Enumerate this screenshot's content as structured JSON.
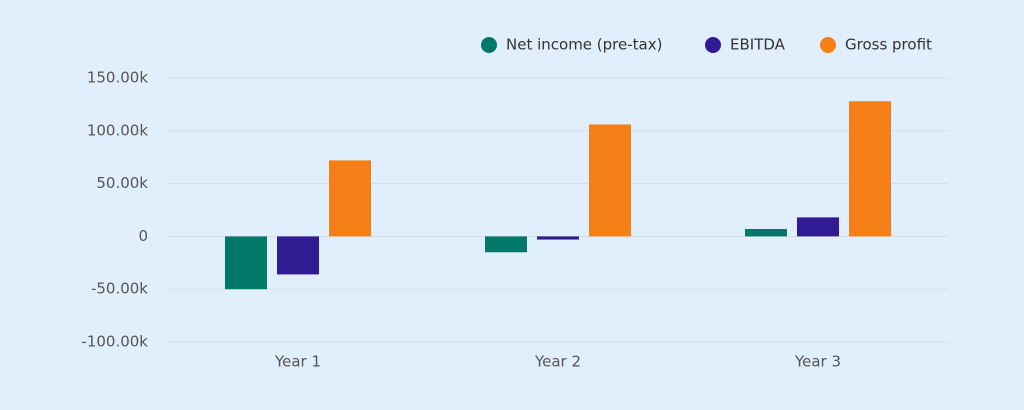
{
  "chart_data": {
    "type": "bar",
    "categories": [
      "Year 1",
      "Year 2",
      "Year 3"
    ],
    "series": [
      {
        "name": "Net income (pre-tax)",
        "color": "#00796b",
        "values": [
          -50000,
          -15000,
          7000
        ]
      },
      {
        "name": "EBITDA",
        "color": "#311b92",
        "values": [
          -36000,
          -3000,
          18000
        ]
      },
      {
        "name": "Gross profit",
        "color": "#f57f17",
        "values": [
          72000,
          106000,
          128000
        ]
      }
    ],
    "ylim": [
      -100000,
      150000
    ],
    "yticks": [
      {
        "value": -100000,
        "label": "-100.00k"
      },
      {
        "value": -50000,
        "label": "-50.00k"
      },
      0,
      {
        "value": 50000,
        "label": "50.00k"
      },
      {
        "value": 100000,
        "label": "100.00k"
      },
      {
        "value": 150000,
        "label": "150.00k"
      }
    ],
    "grid": true,
    "legend": "top-right"
  }
}
